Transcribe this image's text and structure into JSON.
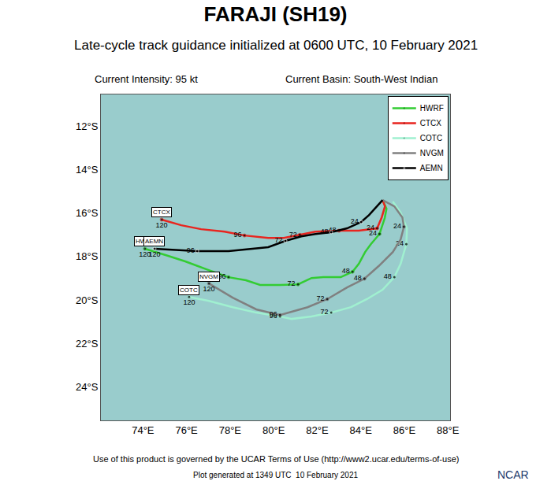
{
  "chart_data": {
    "type": "line",
    "title": "FARAJI (SH19)",
    "subtitle": "Late-cycle track guidance initialized at 0600 UTC, 10 February 2021",
    "intensity": "Current Intensity: 95 kt",
    "basin": "Current Basin: South-West Indian",
    "footer": "Use of this product is governed by the UCAR Terms of Use (http://www2.ucar.edu/terms-of-use)",
    "generated": "Plot generated at 1349 UTC  10 February 2021",
    "logo": "NCAR",
    "xlim": [
      72.07,
      88.1
    ],
    "xticks": [
      {
        "value": 74,
        "label": "74°E"
      },
      {
        "value": 76,
        "label": "76°E"
      },
      {
        "value": 78,
        "label": "78°E"
      },
      {
        "value": 80,
        "label": "80°E"
      },
      {
        "value": 82,
        "label": "82°E"
      },
      {
        "value": 84,
        "label": "84°E"
      },
      {
        "value": 86,
        "label": "86°E"
      },
      {
        "value": 88,
        "label": "88°E"
      }
    ],
    "ylim": [
      -25.54,
      -10.54
    ],
    "yticks": [
      {
        "value": -12,
        "label": "12°S"
      },
      {
        "value": -14,
        "label": "14°S"
      },
      {
        "value": -16,
        "label": "16°S"
      },
      {
        "value": -18,
        "label": "18°S"
      },
      {
        "value": -20,
        "label": "20°S"
      },
      {
        "value": -22,
        "label": "22°S"
      },
      {
        "value": -24,
        "label": "24°S"
      }
    ],
    "grid": false,
    "legend": "upper right",
    "series": [
      {
        "name": "HWRF",
        "color": "#33cc33",
        "x": [
          85.0,
          85.18,
          85.1,
          84.86,
          84.46,
          84.2,
          83.91,
          83.62,
          83.08,
          82.28,
          81.74,
          81.12,
          80.29,
          79.38,
          78.73,
          77.93,
          76.92,
          75.94,
          75.04,
          74.09
        ],
        "y": [
          -15.4,
          -15.8,
          -16.23,
          -16.96,
          -17.43,
          -17.79,
          -18.33,
          -18.7,
          -18.95,
          -18.95,
          -18.99,
          -19.28,
          -19.31,
          -19.31,
          -19.09,
          -18.95,
          -18.59,
          -18.22,
          -17.93,
          -17.64
        ],
        "labels": [
          null,
          null,
          null,
          24,
          null,
          null,
          null,
          48,
          null,
          null,
          null,
          72,
          null,
          null,
          null,
          96,
          null,
          null,
          null,
          120
        ]
      },
      {
        "name": "CTCX",
        "color": "#e8251f",
        "x": [
          85.0,
          85.11,
          84.96,
          84.75,
          83.91,
          83.0,
          81.92,
          81.2,
          80.47,
          79.75,
          78.66,
          77.75,
          76.67,
          75.76,
          74.86
        ],
        "y": [
          -15.4,
          -15.69,
          -16.2,
          -16.7,
          -16.81,
          -16.81,
          -16.85,
          -17.0,
          -17.14,
          -17.14,
          -17.03,
          -16.85,
          -16.74,
          -16.56,
          -16.3
        ],
        "labels": [
          null,
          null,
          null,
          24,
          null,
          48,
          null,
          72,
          null,
          null,
          96,
          null,
          null,
          null,
          120
        ]
      },
      {
        "name": "COTC",
        "color": "#a0f0d0",
        "x": [
          85.47,
          85.83,
          86.12,
          86.09,
          85.83,
          85.54,
          85.0,
          84.28,
          83.55,
          82.64,
          81.74,
          80.83,
          80.29,
          79.2,
          78.12,
          77.03,
          76.12
        ],
        "y": [
          -15.47,
          -15.98,
          -16.7,
          -17.43,
          -18.33,
          -18.95,
          -19.53,
          -19.96,
          -20.33,
          -20.58,
          -20.76,
          -20.87,
          -20.76,
          -20.58,
          -20.33,
          -20.04,
          -19.86
        ],
        "labels": [
          null,
          null,
          null,
          24,
          null,
          48,
          null,
          null,
          null,
          72,
          null,
          null,
          96,
          null,
          null,
          null,
          120
        ]
      },
      {
        "name": "NVGM",
        "color": "#808080",
        "x": [
          85.0,
          85.54,
          85.91,
          85.98,
          85.83,
          85.47,
          84.82,
          84.17,
          83.37,
          82.46,
          81.56,
          80.29,
          79.2,
          78.12,
          77.03
        ],
        "y": [
          -15.4,
          -15.69,
          -16.2,
          -16.63,
          -17.21,
          -17.79,
          -18.44,
          -19.02,
          -19.42,
          -19.96,
          -20.33,
          -20.69,
          -20.43,
          -19.89,
          -19.24
        ],
        "labels": [
          null,
          null,
          null,
          24,
          null,
          null,
          null,
          48,
          null,
          72,
          null,
          96,
          null,
          null,
          120
        ]
      },
      {
        "name": "AEMN",
        "color": "#000000",
        "x": [
          85.0,
          84.75,
          84.38,
          84.02,
          83.37,
          82.64,
          81.92,
          81.27,
          80.54,
          79.75,
          78.95,
          77.93,
          76.49,
          75.4,
          74.53
        ],
        "y": [
          -15.4,
          -15.69,
          -16.09,
          -16.41,
          -16.7,
          -16.88,
          -16.96,
          -17.07,
          -17.28,
          -17.57,
          -17.64,
          -17.75,
          -17.75,
          -17.68,
          -17.64
        ],
        "labels": [
          null,
          null,
          null,
          24,
          null,
          48,
          null,
          null,
          72,
          null,
          null,
          null,
          96,
          null,
          120
        ]
      }
    ]
  }
}
